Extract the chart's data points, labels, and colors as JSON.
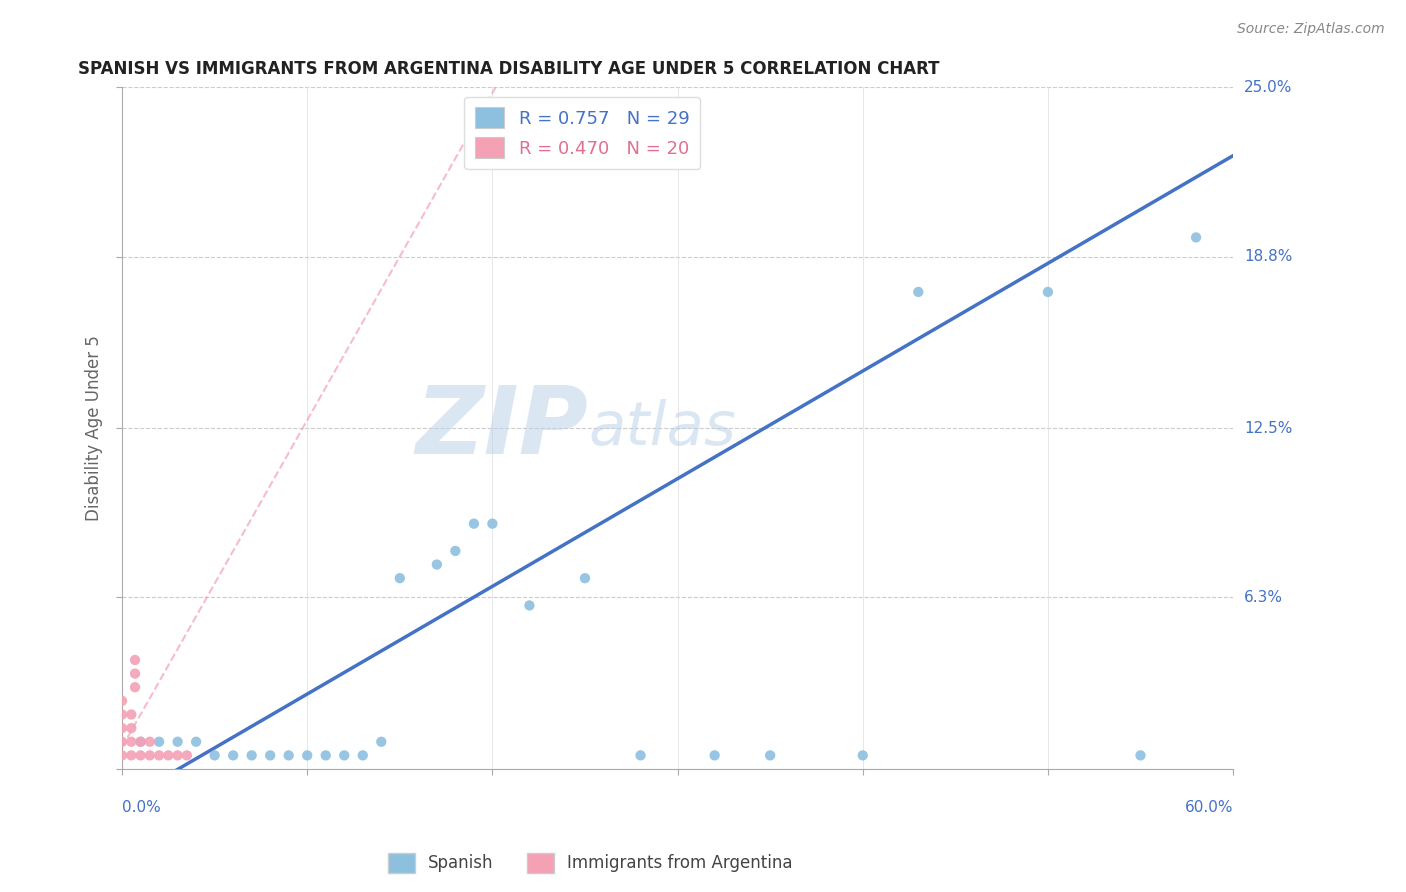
{
  "title": "SPANISH VS IMMIGRANTS FROM ARGENTINA DISABILITY AGE UNDER 5 CORRELATION CHART",
  "source": "Source: ZipAtlas.com",
  "ylabel": "Disability Age Under 5",
  "xlabel": "",
  "xlim": [
    0.0,
    0.6
  ],
  "ylim": [
    0.0,
    0.25
  ],
  "xticks": [
    0.0,
    0.1,
    0.2,
    0.3,
    0.4,
    0.5,
    0.6
  ],
  "yticks": [
    0.0,
    0.063,
    0.125,
    0.188,
    0.25
  ],
  "yticklabels": [
    "",
    "6.3%",
    "12.5%",
    "18.8%",
    "25.0%"
  ],
  "r_spanish": 0.757,
  "n_spanish": 29,
  "r_argentina": 0.47,
  "n_argentina": 20,
  "blue_color": "#8dbfdf",
  "pink_color": "#f4a0b5",
  "blue_line_color": "#4472c4",
  "pink_line_color": "#d9a0b5",
  "watermark_zip": "ZIP",
  "watermark_atlas": "atlas",
  "grid_color": "#cccccc",
  "axis_label_color": "#4472c4",
  "spanish_points": [
    [
      0.01,
      0.01
    ],
    [
      0.02,
      0.01
    ],
    [
      0.03,
      0.01
    ],
    [
      0.04,
      0.01
    ],
    [
      0.05,
      0.005
    ],
    [
      0.06,
      0.005
    ],
    [
      0.07,
      0.005
    ],
    [
      0.08,
      0.005
    ],
    [
      0.09,
      0.005
    ],
    [
      0.1,
      0.005
    ],
    [
      0.11,
      0.005
    ],
    [
      0.12,
      0.005
    ],
    [
      0.13,
      0.005
    ],
    [
      0.14,
      0.01
    ],
    [
      0.15,
      0.07
    ],
    [
      0.17,
      0.075
    ],
    [
      0.18,
      0.08
    ],
    [
      0.19,
      0.09
    ],
    [
      0.2,
      0.09
    ],
    [
      0.22,
      0.06
    ],
    [
      0.25,
      0.07
    ],
    [
      0.28,
      0.005
    ],
    [
      0.32,
      0.005
    ],
    [
      0.35,
      0.005
    ],
    [
      0.4,
      0.005
    ],
    [
      0.43,
      0.175
    ],
    [
      0.5,
      0.175
    ],
    [
      0.55,
      0.005
    ],
    [
      0.58,
      0.195
    ]
  ],
  "argentina_points": [
    [
      0.0,
      0.005
    ],
    [
      0.0,
      0.01
    ],
    [
      0.0,
      0.015
    ],
    [
      0.0,
      0.02
    ],
    [
      0.0,
      0.025
    ],
    [
      0.005,
      0.005
    ],
    [
      0.005,
      0.01
    ],
    [
      0.005,
      0.015
    ],
    [
      0.005,
      0.02
    ],
    [
      0.007,
      0.03
    ],
    [
      0.007,
      0.035
    ],
    [
      0.007,
      0.04
    ],
    [
      0.01,
      0.005
    ],
    [
      0.01,
      0.01
    ],
    [
      0.015,
      0.005
    ],
    [
      0.015,
      0.01
    ],
    [
      0.02,
      0.005
    ],
    [
      0.025,
      0.005
    ],
    [
      0.03,
      0.005
    ],
    [
      0.035,
      0.005
    ]
  ]
}
